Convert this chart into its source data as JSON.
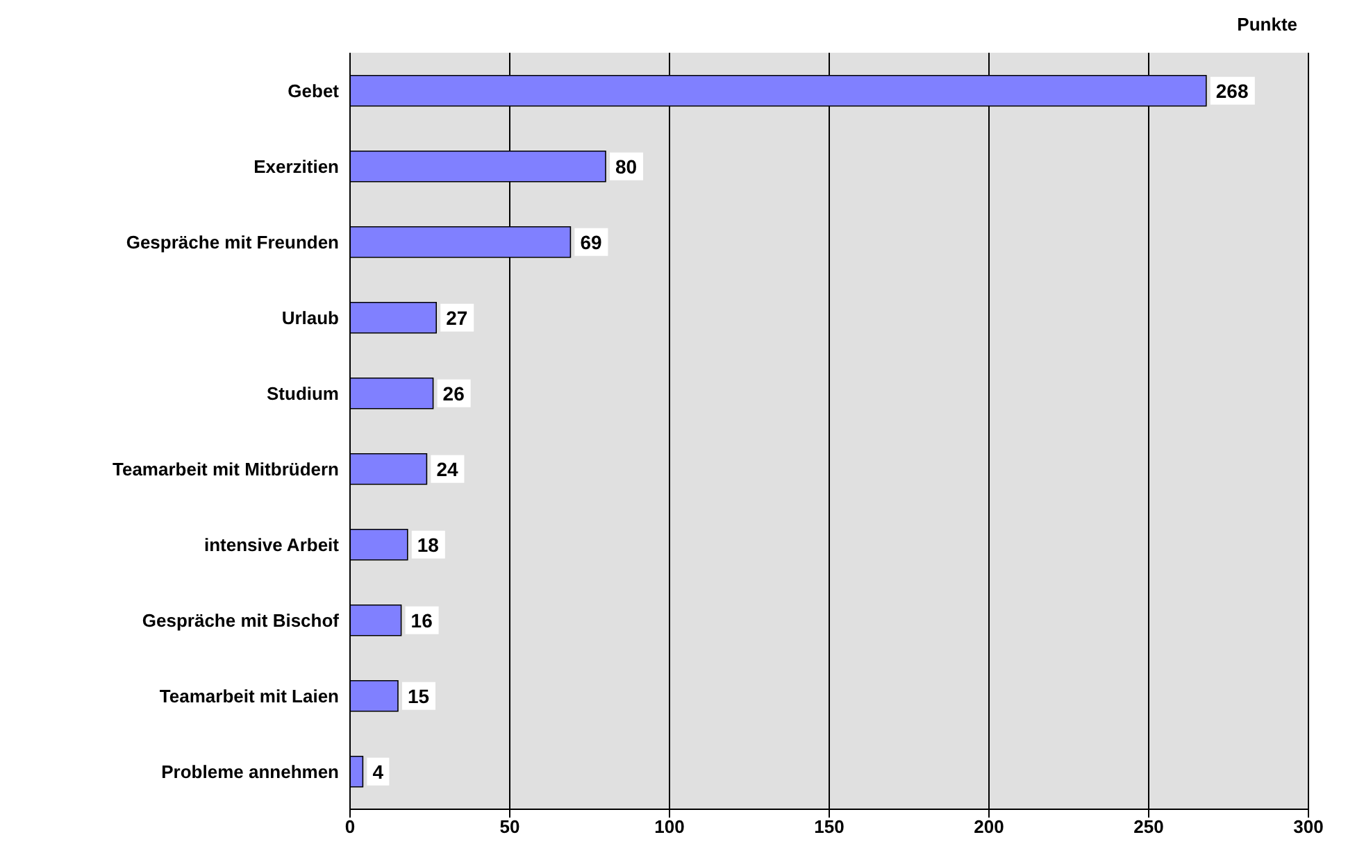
{
  "chart_data": {
    "type": "bar",
    "orientation": "horizontal",
    "xlabel": "Punkte",
    "categories": [
      "Gebet",
      "Exerzitien",
      "Gespräche mit Freunden",
      "Urlaub",
      "Studium",
      "Teamarbeit mit Mitbrüdern",
      "intensive Arbeit",
      "Gespräche mit Bischof",
      "Teamarbeit mit Laien",
      "Probleme annehmen"
    ],
    "values": [
      268,
      80,
      69,
      27,
      26,
      24,
      18,
      16,
      15,
      4
    ],
    "color": "#8080ff",
    "xlim": [
      0,
      300
    ],
    "xticks": [
      0,
      50,
      100,
      150,
      200,
      250,
      300
    ],
    "grid": "x",
    "data_labels": true,
    "legend": false
  }
}
